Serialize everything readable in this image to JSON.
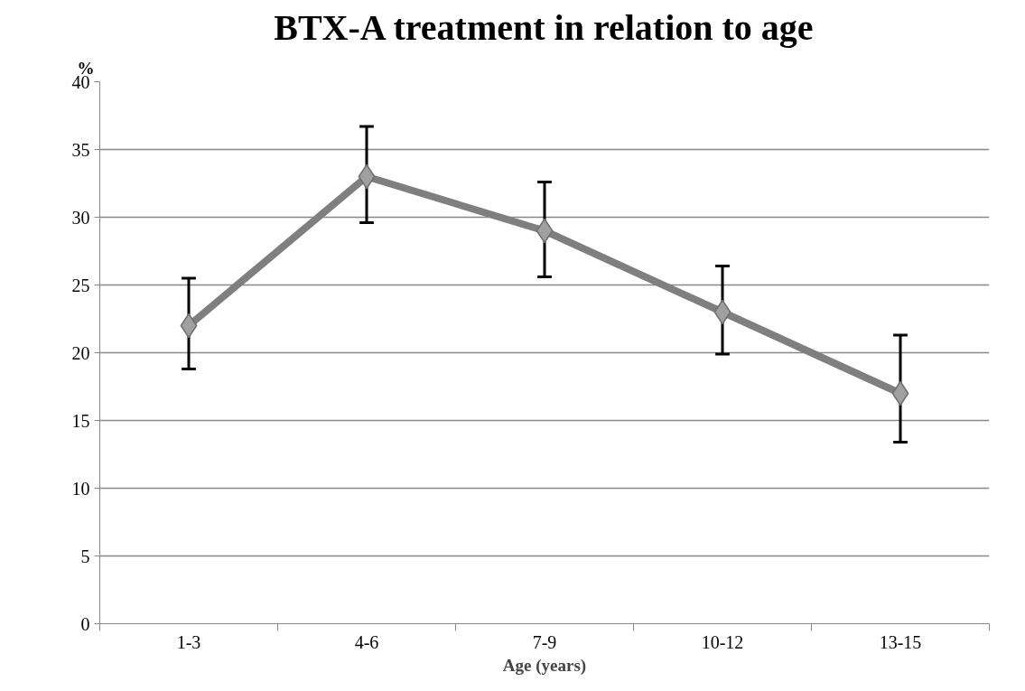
{
  "chart_data": {
    "type": "line",
    "title": "BTX-A treatment in relation to age",
    "xlabel": "Age (years)",
    "ylabel": "%",
    "categories": [
      "1-3",
      "4-6",
      "7-9",
      "10-12",
      "13-15"
    ],
    "series": [
      {
        "color": "#7f7f7f",
        "values": [
          22,
          33,
          29,
          23,
          17
        ],
        "errors": [
          [
            18.8,
            25.5
          ],
          [
            29.6,
            36.7
          ],
          [
            25.6,
            32.6
          ],
          [
            19.9,
            26.4
          ],
          [
            13.4,
            21.3
          ]
        ]
      }
    ],
    "ylim": [
      0,
      40
    ],
    "yticks": [
      0,
      5,
      10,
      15,
      20,
      25,
      30,
      35,
      40
    ],
    "grid": "y",
    "marker": "diamond",
    "line_style": "solid"
  }
}
